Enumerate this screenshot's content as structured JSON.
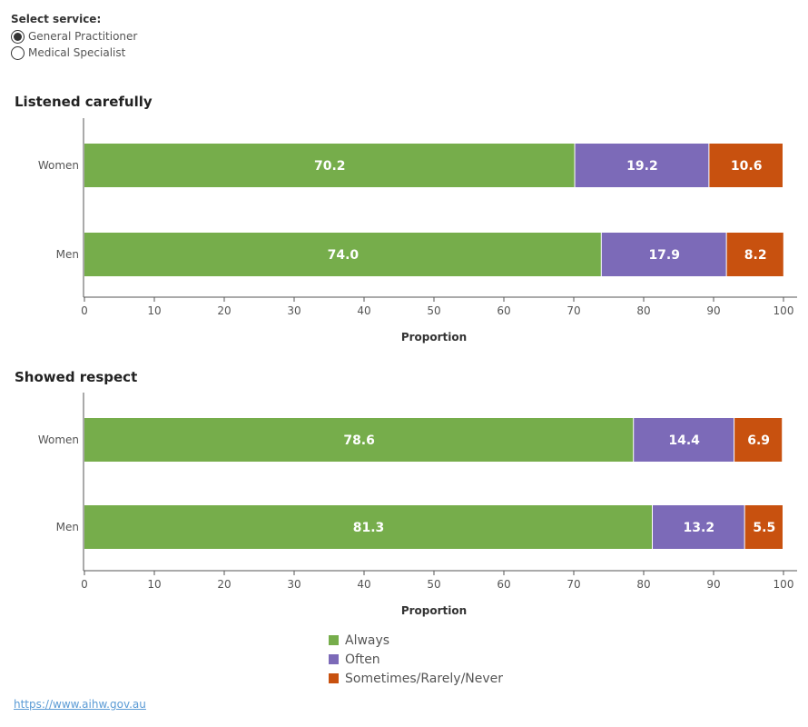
{
  "selector": {
    "title": "Select service:",
    "options": [
      {
        "label": "General Practitioner",
        "selected": true
      },
      {
        "label": "Medical Specialist",
        "selected": false
      }
    ]
  },
  "colors": {
    "always": "#76ad4b",
    "often": "#7c6ab8",
    "sometimes": "#c8510f"
  },
  "chart_data": [
    {
      "type": "bar",
      "orientation": "horizontal",
      "stacked": true,
      "title": "Listened carefully",
      "xlabel": "Proportion",
      "xlim": [
        0,
        100
      ],
      "xticks": [
        0,
        10,
        20,
        30,
        40,
        50,
        60,
        70,
        80,
        90,
        100
      ],
      "categories": [
        "Women",
        "Men"
      ],
      "series": [
        {
          "name": "Always",
          "values": [
            70.2,
            74.0
          ]
        },
        {
          "name": "Often",
          "values": [
            19.2,
            17.9
          ]
        },
        {
          "name": "Sometimes/Rarely/Never",
          "values": [
            10.6,
            8.2
          ]
        }
      ]
    },
    {
      "type": "bar",
      "orientation": "horizontal",
      "stacked": true,
      "title": "Showed respect",
      "xlabel": "Proportion",
      "xlim": [
        0,
        100
      ],
      "xticks": [
        0,
        10,
        20,
        30,
        40,
        50,
        60,
        70,
        80,
        90,
        100
      ],
      "categories": [
        "Women",
        "Men"
      ],
      "series": [
        {
          "name": "Always",
          "values": [
            78.6,
            81.3
          ]
        },
        {
          "name": "Often",
          "values": [
            14.4,
            13.2
          ]
        },
        {
          "name": "Sometimes/Rarely/Never",
          "values": [
            6.9,
            5.5
          ]
        }
      ]
    }
  ],
  "legend": [
    {
      "label": "Always",
      "color": "#76ad4b"
    },
    {
      "label": "Often",
      "color": "#7c6ab8"
    },
    {
      "label": "Sometimes/Rarely/Never",
      "color": "#c8510f"
    }
  ],
  "source_link": "https://www.aihw.gov.au"
}
